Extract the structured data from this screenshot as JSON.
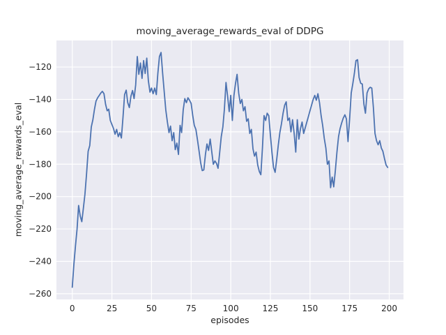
{
  "figure": {
    "title": "moving_average_rewards_eval of DDPG",
    "xlabel": "episodes",
    "ylabel": "moving_average_rewards_eval"
  },
  "colors": {
    "figure_background": "#ffffff",
    "axes_background": "#eaeaf2",
    "grid": "#ffffff",
    "line": "#4c72b0",
    "text": "#262626"
  },
  "chart_data": {
    "type": "line",
    "title": "moving_average_rewards_eval of DDPG",
    "xlabel": "episodes",
    "ylabel": "moving_average_rewards_eval",
    "legend": "none",
    "grid": true,
    "x_ticks": [
      0,
      25,
      50,
      75,
      100,
      125,
      150,
      175,
      200
    ],
    "y_ticks": [
      -120,
      -140,
      -160,
      -180,
      -200,
      -220,
      -240,
      -260
    ],
    "xlim": [
      -10,
      209
    ],
    "ylim": [
      -263.5,
      -103.6
    ],
    "series": [
      {
        "name": "moving_average_rewards_eval",
        "x_start": 0,
        "x_step": 1,
        "values": [
          -256,
          -242,
          -230.5,
          -220,
          -205.5,
          -212,
          -215.5,
          -207,
          -198.5,
          -186,
          -172,
          -168.5,
          -157,
          -152.5,
          -146,
          -141,
          -139,
          -137.5,
          -136,
          -135,
          -136.5,
          -143,
          -147,
          -146,
          -153,
          -155.5,
          -158,
          -161.5,
          -158.5,
          -163,
          -160.5,
          -163.8,
          -151,
          -137,
          -134.3,
          -142,
          -145,
          -138,
          -134.5,
          -139.5,
          -131,
          -113.5,
          -124.5,
          -117.5,
          -127,
          -116,
          -124,
          -114.5,
          -128.5,
          -135.5,
          -133,
          -136.5,
          -133,
          -137,
          -124,
          -113.5,
          -111,
          -124,
          -135,
          -146.5,
          -154,
          -160.5,
          -156.5,
          -165.5,
          -160.5,
          -171,
          -167,
          -174,
          -156,
          -160.5,
          -146.5,
          -139.5,
          -142,
          -139,
          -140.5,
          -142.5,
          -150,
          -156,
          -158.5,
          -165,
          -172,
          -179,
          -184,
          -183.5,
          -174,
          -167.5,
          -171.5,
          -164.5,
          -172,
          -180,
          -178,
          -179.5,
          -182.5,
          -173,
          -163,
          -157,
          -146,
          -129.5,
          -138,
          -147.5,
          -137.5,
          -153,
          -137.5,
          -130,
          -124.5,
          -136,
          -142.5,
          -140,
          -147,
          -144.5,
          -153.5,
          -152,
          -161,
          -158.5,
          -170.5,
          -175,
          -172.5,
          -180.5,
          -184.5,
          -186.5,
          -170,
          -150,
          -153,
          -148.5,
          -150,
          -162,
          -173,
          -182,
          -185,
          -177,
          -168,
          -160.5,
          -155,
          -148.5,
          -143.5,
          -141.5,
          -153,
          -151.5,
          -160,
          -152.5,
          -161,
          -172.5,
          -152.5,
          -164.5,
          -158,
          -154,
          -161,
          -157.5,
          -154,
          -150.5,
          -147,
          -143.5,
          -140,
          -137.5,
          -140.5,
          -136.5,
          -142,
          -150,
          -156,
          -164,
          -170,
          -180,
          -178,
          -194.5,
          -188,
          -194,
          -184,
          -172.5,
          -163,
          -158,
          -154.5,
          -151.5,
          -149.5,
          -152,
          -166,
          -152,
          -136,
          -130.5,
          -124,
          -116,
          -115.5,
          -126.5,
          -130,
          -130.5,
          -143,
          -148.5,
          -136,
          -133.5,
          -132.5,
          -133,
          -145,
          -161,
          -165.5,
          -168,
          -165.5,
          -170,
          -172,
          -176.5,
          -180.5,
          -182
        ]
      }
    ]
  }
}
